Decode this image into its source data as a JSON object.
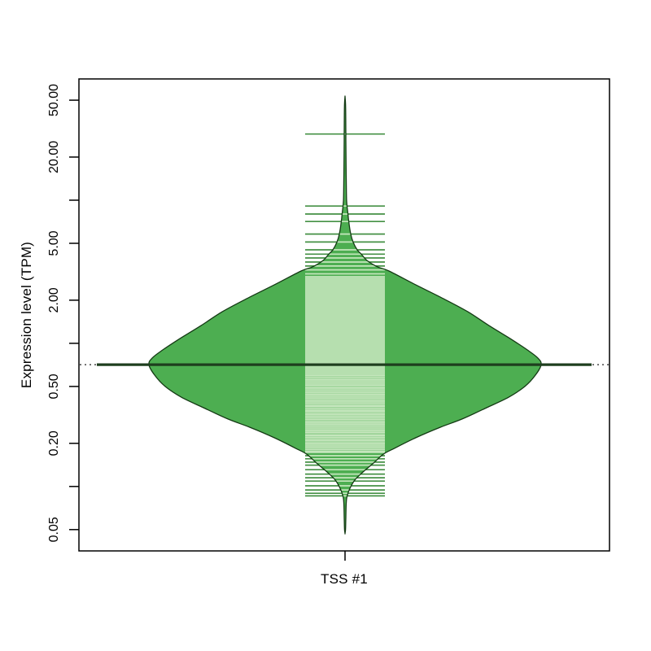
{
  "figure_background": "#ffffff",
  "chart_data": {
    "type": "violin",
    "variant": "beanplot-with-beanlines",
    "title": "",
    "categories": [
      "TSS #1"
    ],
    "ylabel": "Expression level (TPM)",
    "xlabel": "",
    "yscale": "log10",
    "ylim": [
      0.035,
      70
    ],
    "grid": "off",
    "legend": "none",
    "yticks": [
      {
        "value": 50,
        "label": "50.00"
      },
      {
        "value": 20,
        "label": "20.00"
      },
      {
        "value": 10,
        "label": ""
      },
      {
        "value": 5,
        "label": "5.00"
      },
      {
        "value": 2,
        "label": "2.00"
      },
      {
        "value": 1,
        "label": ""
      },
      {
        "value": 0.5,
        "label": "0.50"
      },
      {
        "value": 0.2,
        "label": "0.20"
      },
      {
        "value": 0.1,
        "label": ""
      },
      {
        "value": 0.05,
        "label": "0.05"
      }
    ],
    "series": [
      {
        "name": "TSS #1",
        "average_tpm": 0.71,
        "violin_range_tpm": [
          0.047,
          53
        ],
        "beanline_tpm": [
          29,
          9.1,
          8.0,
          7.1,
          5.8,
          5.1,
          4.5,
          4.2,
          3.95,
          3.7,
          3.47,
          3.26,
          3.06,
          2.922,
          2.846,
          2.772,
          2.701,
          2.631,
          2.563,
          2.497,
          2.433,
          2.369,
          2.308,
          2.248,
          2.191,
          2.134,
          2.078,
          2.025,
          1.973,
          1.922,
          1.872,
          1.824,
          1.777,
          1.731,
          1.686,
          1.643,
          1.6,
          1.559,
          1.519,
          1.479,
          1.441,
          1.404,
          1.368,
          1.332,
          1.298,
          1.264,
          1.231,
          1.2,
          1.169,
          1.138,
          1.109,
          1.08,
          1.052,
          1.025,
          0.999,
          0.973,
          0.948,
          0.923,
          0.899,
          0.876,
          0.853,
          0.831,
          0.81,
          0.789,
          0.769,
          0.749,
          0.729,
          0.71,
          0.692,
          0.674,
          0.657,
          0.64,
          0.623,
          0.607,
          0.592,
          0.576,
          0.561,
          0.547,
          0.533,
          0.519,
          0.506,
          0.492,
          0.48,
          0.467,
          0.455,
          0.443,
          0.432,
          0.421,
          0.41,
          0.399,
          0.389,
          0.379,
          0.369,
          0.36,
          0.35,
          0.341,
          0.333,
          0.324,
          0.316,
          0.308,
          0.3,
          0.292,
          0.284,
          0.277,
          0.27,
          0.263,
          0.256,
          0.249,
          0.243,
          0.237,
          0.23,
          0.225,
          0.219,
          0.213,
          0.208,
          0.202,
          0.197,
          0.192,
          0.187,
          0.182,
          0.177,
          0.173,
          0.164,
          0.156,
          0.148,
          0.141,
          0.131,
          0.122,
          0.115,
          0.109,
          0.101,
          0.0945,
          0.0896,
          0.0859
        ],
        "density_profile": [
          [
            53.4,
            0.0
          ],
          [
            45,
            0.003
          ],
          [
            30,
            0.004
          ],
          [
            20,
            0.005
          ],
          [
            15,
            0.006
          ],
          [
            10,
            0.008
          ],
          [
            8.0,
            0.015
          ],
          [
            7.1,
            0.019
          ],
          [
            5.8,
            0.029
          ],
          [
            5.1,
            0.041
          ],
          [
            4.5,
            0.062
          ],
          [
            4.2,
            0.083
          ],
          [
            3.79,
            0.112
          ],
          [
            3.42,
            0.166
          ],
          [
            3.2,
            0.224
          ],
          [
            2.56,
            0.361
          ],
          [
            2.05,
            0.502
          ],
          [
            1.66,
            0.627
          ],
          [
            1.33,
            0.734
          ],
          [
            1.07,
            0.846
          ],
          [
            0.9,
            0.929
          ],
          [
            0.79,
            0.983
          ],
          [
            0.71,
            1.0
          ],
          [
            0.6,
            0.971
          ],
          [
            0.5,
            0.917
          ],
          [
            0.42,
            0.834
          ],
          [
            0.355,
            0.722
          ],
          [
            0.296,
            0.597
          ],
          [
            0.259,
            0.485
          ],
          [
            0.219,
            0.361
          ],
          [
            0.185,
            0.253
          ],
          [
            0.168,
            0.195
          ],
          [
            0.144,
            0.141
          ],
          [
            0.126,
            0.091
          ],
          [
            0.111,
            0.05
          ],
          [
            0.097,
            0.025
          ],
          [
            0.085,
            0.01
          ],
          [
            0.075,
            0.006
          ],
          [
            0.06,
            0.004
          ],
          [
            0.05,
            0.0025
          ],
          [
            0.047,
            0.0
          ]
        ]
      }
    ],
    "colors": {
      "violin_fill": "#4dae51",
      "violin_border": "#143a14",
      "beanline_inside": "#c5e6bd",
      "beanline_outside": "#459145",
      "average_line": "#1e3e1e",
      "overall_dotted_line": "#222222",
      "axis": "#000000"
    }
  }
}
